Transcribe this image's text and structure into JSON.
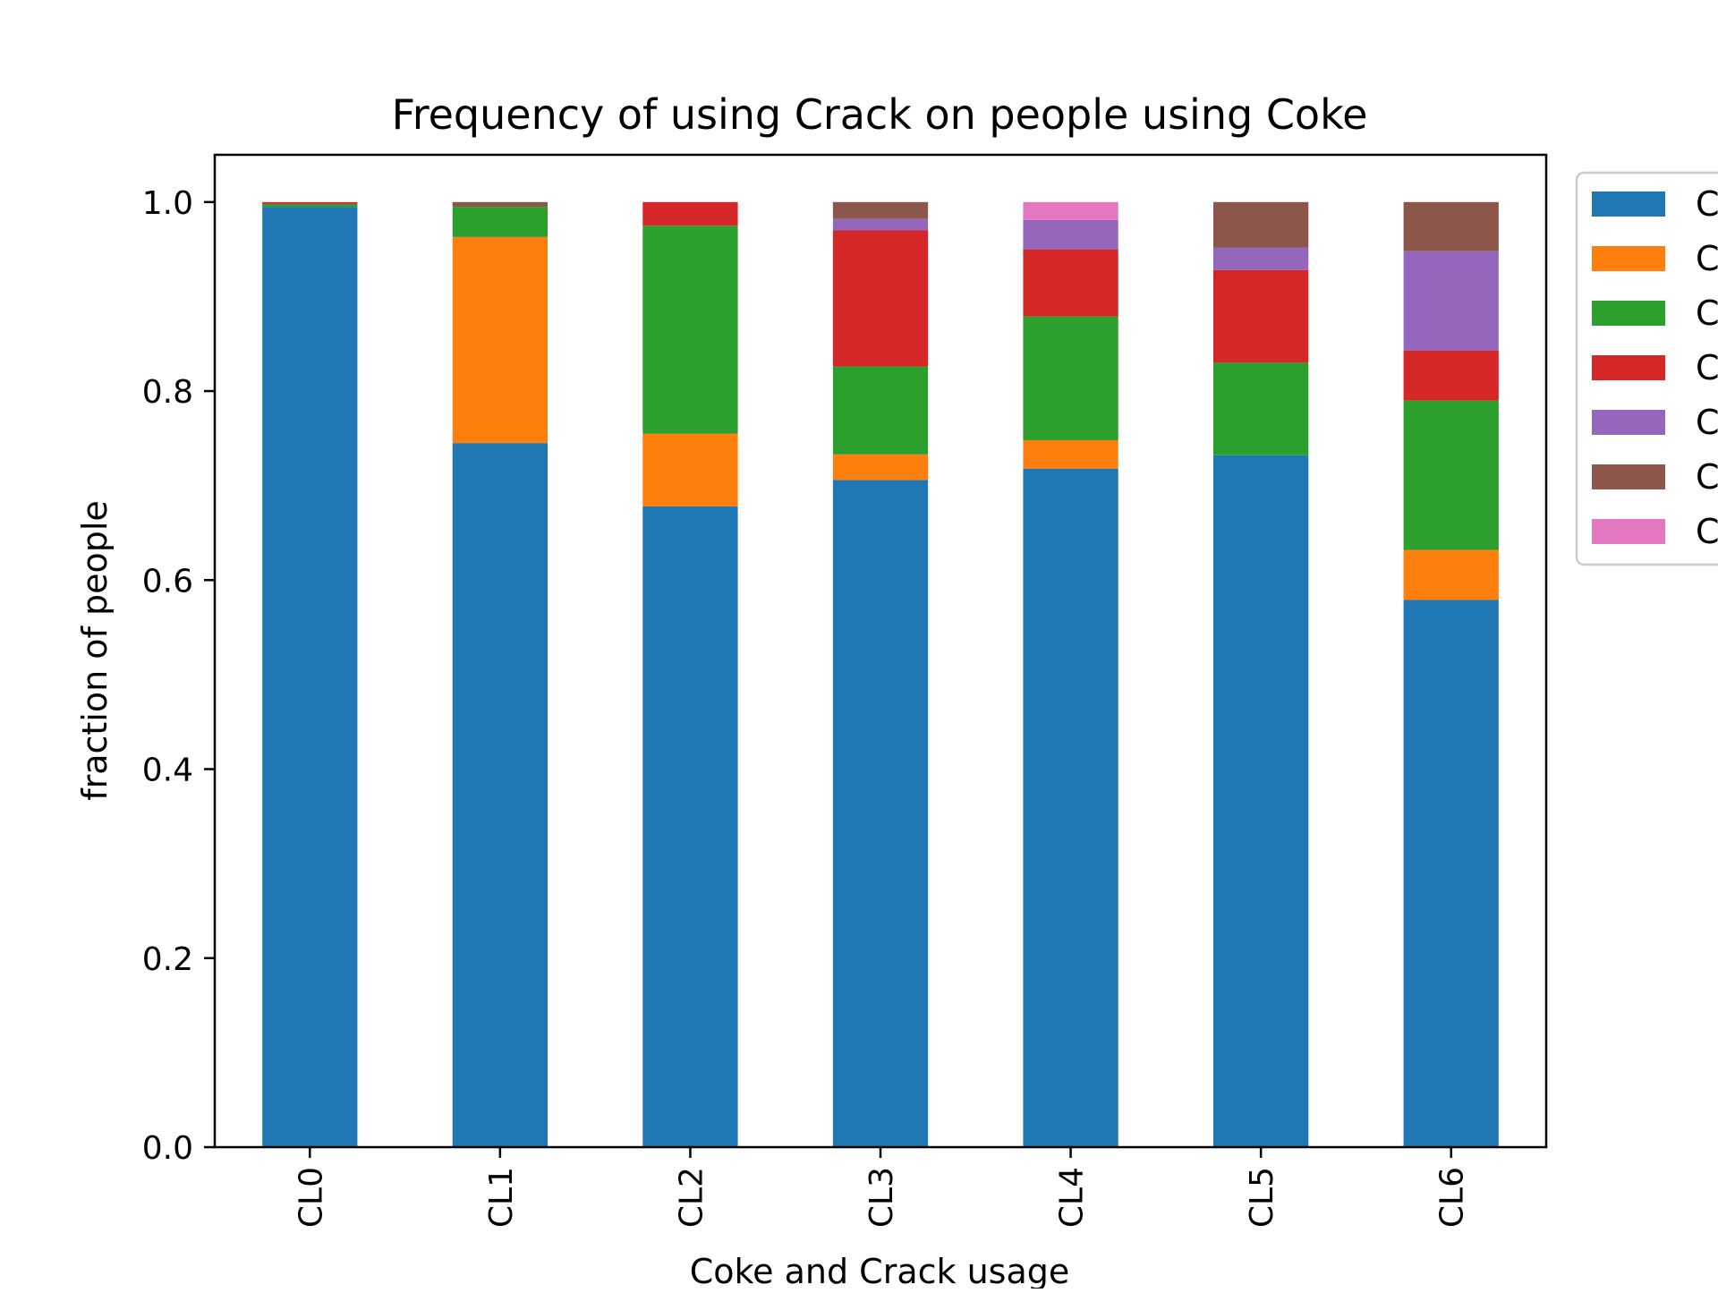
{
  "chart_data": {
    "type": "bar",
    "stacked": true,
    "title": "Frequency of using Crack on people using Coke",
    "xlabel": "Coke and Crack usage",
    "ylabel": "fraction of people",
    "ylim": [
      0,
      1.05
    ],
    "y_ticks": [
      "0.0",
      "0.2",
      "0.4",
      "0.6",
      "0.8",
      "1.0"
    ],
    "categories": [
      "CL0",
      "CL1",
      "CL2",
      "CL3",
      "CL4",
      "CL5",
      "CL6"
    ],
    "legend_position": "upper right, outside plot (clipped)",
    "legend_labels": [
      "C",
      "C",
      "C",
      "C",
      "C",
      "C",
      "C"
    ],
    "series": [
      {
        "color": "#1f77b4",
        "values": [
          0.995,
          0.745,
          0.678,
          0.706,
          0.718,
          0.732,
          0.579
        ]
      },
      {
        "color": "#ff7f0e",
        "values": [
          0.0,
          0.218,
          0.077,
          0.027,
          0.03,
          0.0,
          0.053
        ]
      },
      {
        "color": "#2ca02c",
        "values": [
          0.003,
          0.032,
          0.22,
          0.093,
          0.131,
          0.098,
          0.158
        ]
      },
      {
        "color": "#d62728",
        "values": [
          0.002,
          0.0,
          0.025,
          0.144,
          0.071,
          0.098,
          0.053
        ]
      },
      {
        "color": "#9467bd",
        "values": [
          0.0,
          0.0,
          0.0,
          0.012,
          0.031,
          0.024,
          0.105
        ]
      },
      {
        "color": "#8c564b",
        "values": [
          0.0,
          0.005,
          0.0,
          0.018,
          0.0,
          0.048,
          0.052
        ]
      },
      {
        "color": "#e377c2",
        "values": [
          0.0,
          0.0,
          0.0,
          0.0,
          0.019,
          0.0,
          0.0
        ]
      }
    ]
  }
}
